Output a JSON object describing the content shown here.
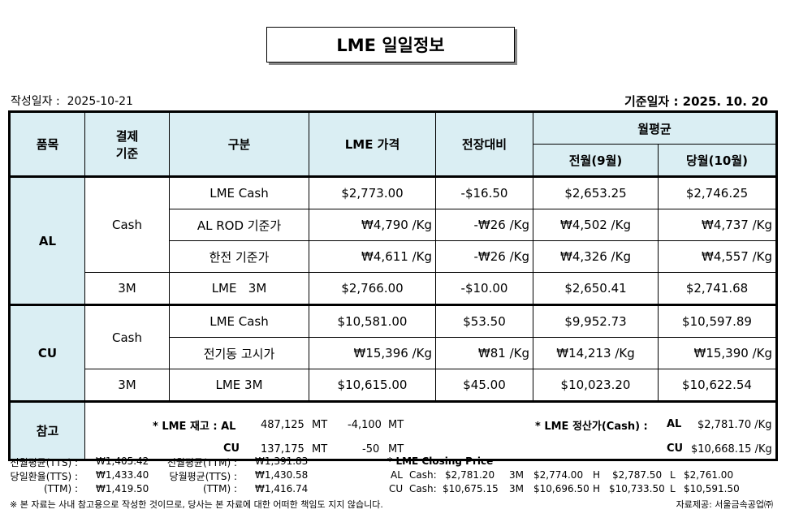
{
  "title": "LME 일일정보",
  "created": {
    "label": "작성일자 :",
    "value": "2025-10-21"
  },
  "base_date": "기준일자 : 2025.  10.  20",
  "headers": {
    "item": "품목",
    "settle_line1": "결제",
    "settle_line2": "기준",
    "type": "구분",
    "price": "LME 가격",
    "change": "전장대비",
    "monthly_avg": "월평균",
    "prev_month": "전월(9월)",
    "cur_month": "당월(10월)"
  },
  "groups": [
    {
      "item": "AL",
      "rows": [
        {
          "settle": "Cash",
          "type": "LME Cash",
          "price": "$2,773.00",
          "change": "-$16.50",
          "prev": "$2,653.25",
          "cur": "$2,746.25"
        },
        {
          "type": "AL ROD 기준가",
          "price": "₩4,790 /Kg",
          "change": "-₩26 /Kg",
          "prev": "₩4,502 /Kg",
          "cur": "₩4,737 /Kg"
        },
        {
          "type": "한전 기준가",
          "price": "₩4,611 /Kg",
          "change": "-₩26 /Kg",
          "prev": "₩4,326 /Kg",
          "cur": "₩4,557 /Kg"
        },
        {
          "settle": "3M",
          "type": "LME   3M",
          "price": "$2,766.00",
          "change": "-$10.00",
          "prev": "$2,650.41",
          "cur": "$2,741.68"
        }
      ]
    },
    {
      "item": "CU",
      "rows": [
        {
          "settle": "Cash",
          "type": "LME Cash",
          "price": "$10,581.00",
          "change": "$53.50",
          "prev": "$9,952.73",
          "cur": "$10,597.89"
        },
        {
          "type": "전기동 고시가",
          "price": "₩15,396 /Kg",
          "change": "₩81 /Kg",
          "prev": "₩14,213 /Kg",
          "cur": "₩15,390 /Kg"
        },
        {
          "settle": "3M",
          "type": "LME 3M",
          "price": "$10,615.00",
          "change": "$45.00",
          "prev": "$10,023.20",
          "cur": "$10,622.54"
        }
      ]
    }
  ],
  "reference": {
    "label": "참고",
    "stock_label": "* LME 재고 : AL",
    "al_stock": "487,125",
    "al_stock_unit": "MT",
    "al_change": "-4,100",
    "al_change_unit": "MT",
    "cu_label": "CU",
    "cu_stock": "137,175",
    "cu_stock_unit": "MT",
    "cu_change": "-50",
    "cu_change_unit": "MT",
    "settle_label": "* LME 정산가(Cash) :",
    "al_label": "AL",
    "al_settle": "$2,781.70 /Kg",
    "cu_label2": "CU",
    "cu_settle": "$10,668.15 /Kg"
  },
  "fx": [
    {
      "l1": "전월평균(TTS) :",
      "v1": "₩1,405.42",
      "l2": "전월평균(TTM) :",
      "v2": "₩1,391.83"
    },
    {
      "l1": "당일환율(TTS) :",
      "v1": "₩1,433.40",
      "l2": "당월평균(TTS) :",
      "v2": "₩1,430.58"
    },
    {
      "l1": "(TTM) :",
      "v1": "₩1,419.50",
      "l2": "(TTM) :",
      "v2": "₩1,416.74"
    }
  ],
  "closing": {
    "title": "* LME Closing Price",
    "rows": [
      {
        "metal": "AL",
        "cash_label": "Cash:",
        "cash": "$2,781.20",
        "m3_label": "3M",
        "m3": "$2,774.00",
        "h_label": "H",
        "h": "$2,787.50",
        "l_label": "L",
        "l": "$2,761.00"
      },
      {
        "metal": "CU",
        "cash_label": "Cash:",
        "cash": "$10,675.15",
        "m3_label": "3M",
        "m3": "$10,696.50",
        "h_label": "H",
        "h": "$10,733.50",
        "l_label": "L",
        "l": "$10,591.50"
      }
    ]
  },
  "disclaimer": "※ 본 자료는 사내 참고용으로 작성한 것이므로, 당사는 본 자료에 대한 어떠한 책임도 지지 않습니다.",
  "source": "자료제공: 서울금속공업㈜",
  "colors": {
    "header_fill": "#daeef3",
    "border": "#000000"
  }
}
